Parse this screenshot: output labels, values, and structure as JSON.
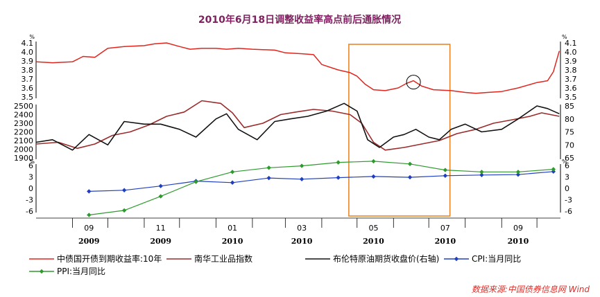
{
  "title": "2010年6月18日调整收益率高点前后通胀情况",
  "source": "数据来源:中国债券信息网 Wind",
  "colors": {
    "yield": "#e0251e",
    "nanhua": "#9b2a2a",
    "brent": "#111111",
    "cpi": "#1f3fbf",
    "ppi": "#2e9a2e",
    "highlight": "#e8862a",
    "title": "#7f1f5f"
  },
  "x_axis": {
    "months": [
      "09",
      "11",
      "01",
      "03",
      "05",
      "07",
      "09"
    ],
    "years": [
      "2009",
      "2009",
      "2010",
      "2010",
      "2010",
      "2010",
      "2010"
    ]
  },
  "legend": [
    {
      "key": "yield",
      "label": "中债国开债到期收益率:10年",
      "marker": "none"
    },
    {
      "key": "nanhua",
      "label": "南华工业品指数",
      "marker": "none"
    },
    {
      "key": "brent",
      "label": "布伦特原油期货收盘价(右轴)",
      "marker": "none"
    },
    {
      "key": "cpi",
      "label": "CPI:当月同比",
      "marker": "diamond"
    },
    {
      "key": "ppi",
      "label": "PPI:当月同比",
      "marker": "diamond"
    }
  ],
  "chart_data": [
    {
      "type": "line",
      "panel": "top",
      "unit_label": "%",
      "ylim": [
        3.5,
        4.1
      ],
      "y_ticks": [
        "4.1",
        "4.0",
        "3.9",
        "3.8",
        "3.7",
        "3.6",
        "3.5"
      ],
      "x_range": [
        "2009-08",
        "2010-10"
      ],
      "series": [
        {
          "name": "中债国开债到期收益率:10年",
          "color_key": "yield",
          "x": [
            "2009-08-01",
            "2009-08-15",
            "2009-09-01",
            "2009-09-10",
            "2009-09-20",
            "2009-10-01",
            "2009-10-15",
            "2009-11-01",
            "2009-11-10",
            "2009-11-20",
            "2009-12-01",
            "2009-12-10",
            "2009-12-20",
            "2010-01-01",
            "2010-01-10",
            "2010-01-20",
            "2010-02-01",
            "2010-02-20",
            "2010-03-01",
            "2010-03-15",
            "2010-03-25",
            "2010-04-01",
            "2010-04-15",
            "2010-04-25",
            "2010-05-01",
            "2010-05-08",
            "2010-05-15",
            "2010-05-25",
            "2010-06-05",
            "2010-06-12",
            "2010-06-18",
            "2010-06-25",
            "2010-07-05",
            "2010-07-20",
            "2010-08-01",
            "2010-08-10",
            "2010-08-20",
            "2010-09-01",
            "2010-09-15",
            "2010-10-01",
            "2010-10-10",
            "2010-10-15",
            "2010-10-20"
          ],
          "values": [
            3.89,
            3.88,
            3.89,
            3.95,
            3.94,
            4.04,
            4.06,
            4.07,
            4.09,
            4.1,
            4.06,
            4.03,
            4.04,
            4.04,
            4.03,
            4.04,
            4.03,
            4.02,
            3.99,
            3.98,
            3.97,
            3.86,
            3.8,
            3.77,
            3.73,
            3.64,
            3.58,
            3.57,
            3.6,
            3.65,
            3.68,
            3.62,
            3.58,
            3.57,
            3.55,
            3.54,
            3.55,
            3.56,
            3.6,
            3.66,
            3.68,
            3.78,
            4.01
          ]
        }
      ]
    },
    {
      "type": "line",
      "panel": "middle",
      "ylim_left": [
        1900,
        2500
      ],
      "y_ticks_left": [
        "2500",
        "2400",
        "2300",
        "2200",
        "2100",
        "2000",
        "1900"
      ],
      "ylim_right": [
        65,
        85
      ],
      "y_ticks_right": [
        "85",
        "80",
        "75",
        "70",
        "65"
      ],
      "series": [
        {
          "name": "南华工业品指数",
          "color_key": "nanhua",
          "axis": "left",
          "x": [
            "2009-08-01",
            "2009-08-20",
            "2009-09-05",
            "2009-09-20",
            "2009-10-05",
            "2009-10-20",
            "2009-11-05",
            "2009-11-20",
            "2009-12-05",
            "2009-12-20",
            "2010-01-05",
            "2010-01-15",
            "2010-01-25",
            "2010-02-10",
            "2010-02-25",
            "2010-03-10",
            "2010-03-25",
            "2010-04-10",
            "2010-04-25",
            "2010-05-05",
            "2010-05-15",
            "2010-05-25",
            "2010-06-10",
            "2010-06-25",
            "2010-07-10",
            "2010-07-25",
            "2010-08-10",
            "2010-08-25",
            "2010-09-10",
            "2010-09-25",
            "2010-10-05",
            "2010-10-20"
          ],
          "values": [
            2060,
            2080,
            2010,
            2060,
            2160,
            2200,
            2280,
            2380,
            2430,
            2560,
            2530,
            2420,
            2250,
            2300,
            2400,
            2430,
            2460,
            2440,
            2400,
            2300,
            2080,
            1990,
            2020,
            2060,
            2100,
            2180,
            2230,
            2300,
            2340,
            2380,
            2420,
            2380
          ]
        },
        {
          "name": "布伦特原油期货收盘价(右轴)",
          "color_key": "brent",
          "axis": "right",
          "x": [
            "2009-08-01",
            "2009-08-15",
            "2009-09-01",
            "2009-09-15",
            "2009-10-01",
            "2009-10-15",
            "2009-11-01",
            "2009-11-15",
            "2009-12-01",
            "2009-12-15",
            "2010-01-01",
            "2010-01-10",
            "2010-01-20",
            "2010-02-05",
            "2010-02-20",
            "2010-03-05",
            "2010-03-20",
            "2010-04-05",
            "2010-04-20",
            "2010-05-01",
            "2010-05-10",
            "2010-05-20",
            "2010-06-01",
            "2010-06-10",
            "2010-06-20",
            "2010-07-01",
            "2010-07-10",
            "2010-07-20",
            "2010-08-01",
            "2010-08-15",
            "2010-09-01",
            "2010-09-15",
            "2010-10-01",
            "2010-10-10",
            "2010-10-20"
          ],
          "values": [
            71,
            72,
            68,
            74,
            70,
            79,
            78,
            78,
            76,
            73,
            80,
            82,
            76,
            72,
            79,
            80,
            81,
            83,
            86,
            83,
            72,
            69,
            73,
            74,
            76,
            73,
            72,
            76,
            78,
            75,
            76,
            80,
            85,
            84,
            82
          ]
        }
      ]
    },
    {
      "type": "line",
      "panel": "bottom",
      "unit_label": "%",
      "ylim": [
        -6,
        6
      ],
      "y_ticks": [
        "6",
        "3",
        "0",
        "-3",
        "-6"
      ],
      "series": [
        {
          "name": "CPI:当月同比",
          "color_key": "cpi",
          "marker": "diamond",
          "x": [
            "2009-09",
            "2009-10",
            "2009-11",
            "2009-12",
            "2010-01",
            "2010-02",
            "2010-03",
            "2010-04",
            "2010-05",
            "2010-06",
            "2010-07",
            "2010-08",
            "2010-09",
            "2010-10"
          ],
          "values": [
            -0.8,
            -0.5,
            0.6,
            1.9,
            1.5,
            2.7,
            2.4,
            2.8,
            3.1,
            2.9,
            3.3,
            3.5,
            3.6,
            4.4
          ]
        },
        {
          "name": "PPI:当月同比",
          "color_key": "ppi",
          "marker": "diamond",
          "x": [
            "2009-09",
            "2009-10",
            "2009-11",
            "2009-12",
            "2010-01",
            "2010-02",
            "2010-03",
            "2010-04",
            "2010-05",
            "2010-06",
            "2010-07",
            "2010-08",
            "2010-09",
            "2010-10"
          ],
          "values": [
            -7.0,
            -5.8,
            -2.1,
            1.7,
            4.3,
            5.4,
            5.9,
            6.8,
            7.1,
            6.4,
            4.8,
            4.3,
            4.3,
            5.0
          ]
        }
      ]
    }
  ]
}
